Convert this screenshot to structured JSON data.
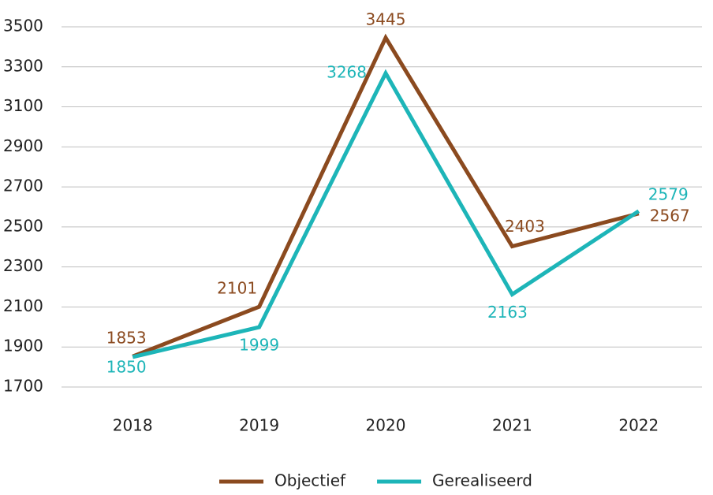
{
  "chart_data": {
    "type": "line",
    "categories": [
      "2018",
      "2019",
      "2020",
      "2021",
      "2022"
    ],
    "series": [
      {
        "name": "Objectief",
        "color": "#8b4a1f",
        "values": [
          1853,
          2101,
          3445,
          2403,
          2567
        ]
      },
      {
        "name": "Gerealiseerd",
        "color": "#1db5b8",
        "values": [
          1850,
          1999,
          3268,
          2163,
          2579
        ]
      }
    ],
    "ylim": [
      1700,
      3500
    ],
    "yticks": [
      1700,
      1900,
      2100,
      2300,
      2500,
      2700,
      2900,
      3100,
      3300,
      3500
    ],
    "grid": true,
    "legend": "bottom"
  }
}
